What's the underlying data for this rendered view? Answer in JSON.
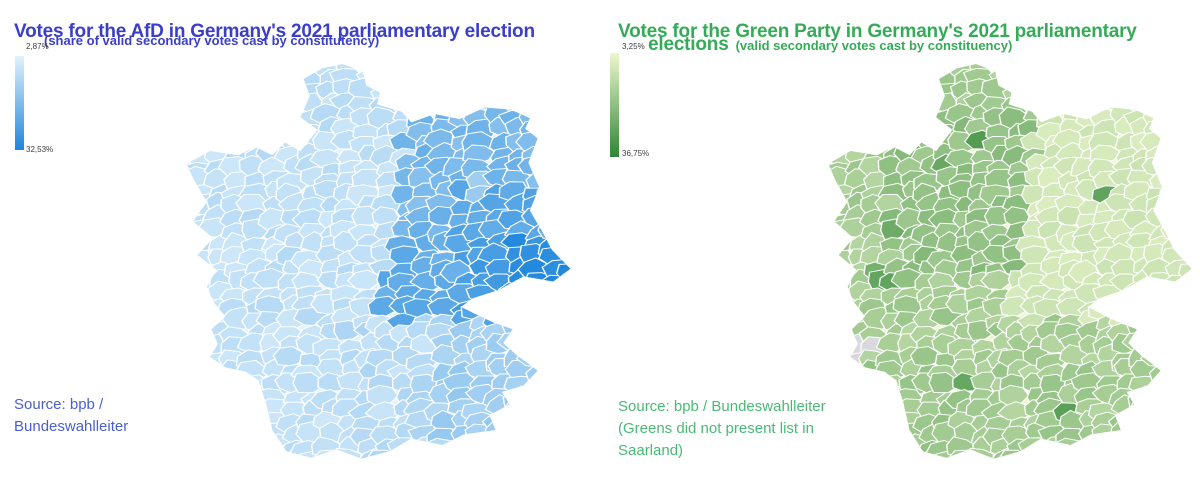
{
  "left_panel": {
    "title": "Votes for the AfD in Germany's 2021 parliamentary election",
    "subtitle": "(share of valid secondary votes cast by constitutency)",
    "title_color": "#3a3ec8",
    "source_color": "#4a5fd2",
    "legend": {
      "top_label": "2,87%",
      "bottom_label": "32,53%",
      "light_color": "#e1f2fc",
      "dark_color": "#1e86dc"
    },
    "source_lines": [
      "Source: bpb /",
      "Bundeswahlleiter"
    ]
  },
  "right_panel": {
    "title_line1": "Votes for the Green Party in Germany's 2021 parliamentary",
    "title_emphasis": "elections",
    "subtitle": "(valid secondary votes cast by constituency)",
    "title_color": "#35ab58",
    "source_color": "#49ba75",
    "legend": {
      "top_label": "3,25%",
      "bottom_label": "36,75%",
      "light_color": "#eef8cf",
      "dark_color": "#2f8634"
    },
    "no_data_color": "#d9d9dd",
    "source_lines": [
      "Source: bpb / Bundeswahlleiter",
      "(Greens did not present list in",
      "Saarland)"
    ]
  },
  "chart_data": [
    {
      "type": "choropleth",
      "geography": "Germany, parliamentary constituencies",
      "title": "Votes for the AfD in Germany's 2021 parliamentary election",
      "subtitle": "(share of valid secondary votes cast by constitutency)",
      "metric": "share of valid secondary votes cast by constituency",
      "value_min": "2,87%",
      "value_max": "32,53%",
      "colorscale": [
        "#e1f2fc",
        "#1e86dc"
      ],
      "legend_position": "top-left",
      "source": "Source: bpb / Bundeswahlleiter",
      "visual_pattern": "Highest AfD shares (dark blue) in eastern Germany, darkest in Saxony and southern Brandenburg, strong in Thuringia and Saxony-Anhalt; Berlin noticeably lighter than surrounding Brandenburg; western and north-western constituencies palest; slightly elevated values in north-east Bavaria near the Czech border."
    },
    {
      "type": "choropleth",
      "geography": "Germany, parliamentary constituencies",
      "title": "Votes for the Green Party in Germany's 2021 parliamentary elections",
      "subtitle": "(valid secondary votes cast by constituency)",
      "metric": "valid secondary votes cast by constituency",
      "value_min": "3,25%",
      "value_max": "36,75%",
      "colorscale": [
        "#eef8cf",
        "#2f8634"
      ],
      "legend_position": "top-left",
      "source": "Source: bpb / Bundeswahlleiter (Greens did not present list in Saarland)",
      "no_data_region": "Saarland (shown in grey)",
      "visual_pattern": "Higher Green shares (darker green) across western and north-western Germany and in big cities such as Hamburg, Cologne, Frankfurt, Stuttgart, Munich, Freiburg and Berlin; eastern Germany palest; Saarland grey because no Green list was presented there."
    }
  ]
}
